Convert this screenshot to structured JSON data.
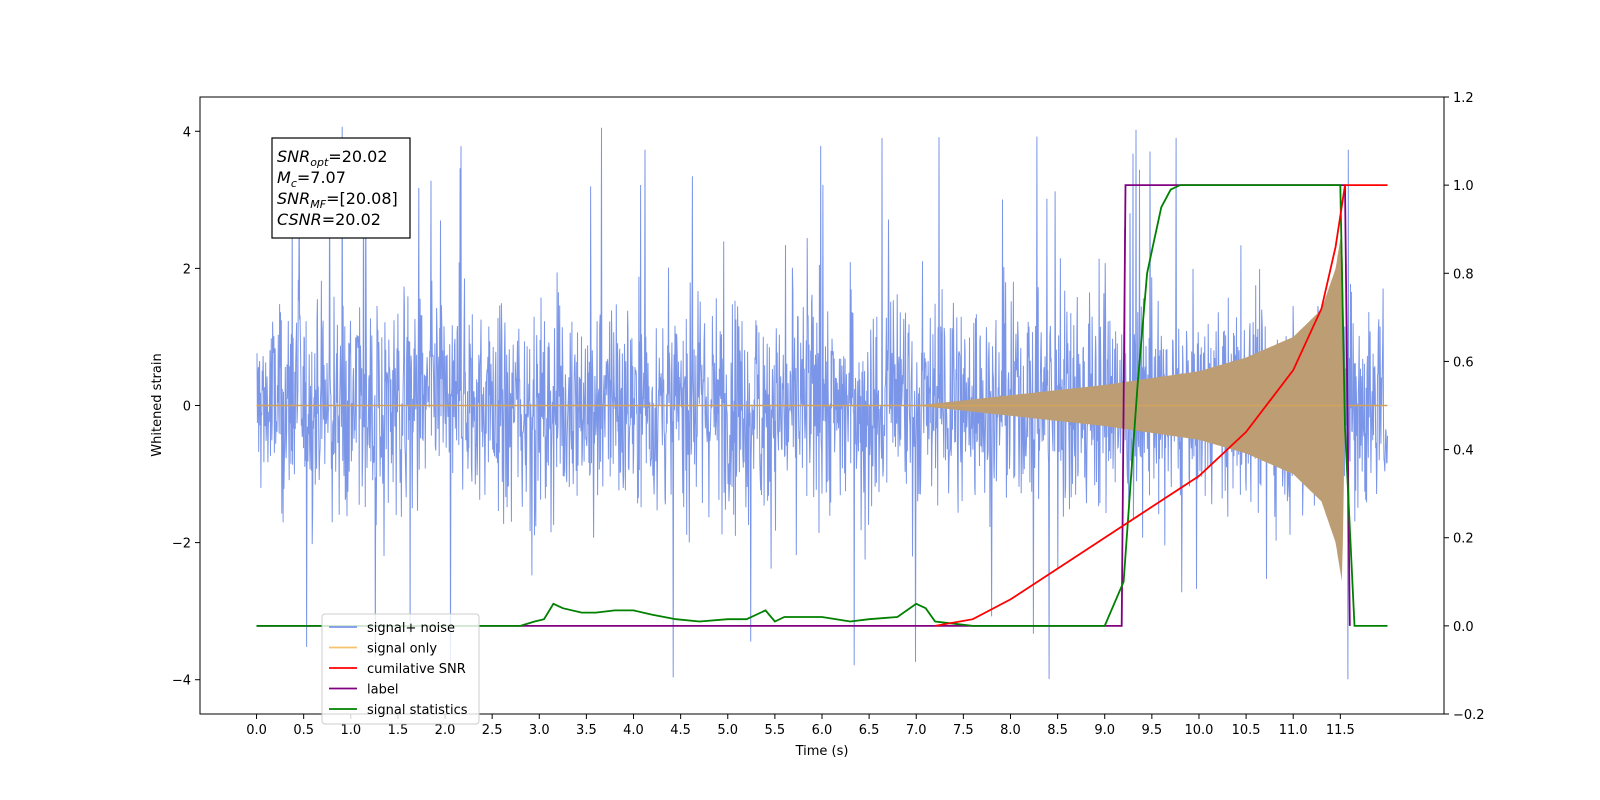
{
  "chart_data": {
    "type": "line",
    "xlabel": "Time (s)",
    "ylabel": "Whitened strain",
    "xlim": [
      -0.6,
      12.6
    ],
    "ylim": [
      -4.5,
      4.5
    ],
    "y2lim": [
      -0.2,
      1.2
    ],
    "x_ticks": [
      "0.0",
      "0.5",
      "1.0",
      "1.5",
      "2.0",
      "2.5",
      "3.0",
      "3.5",
      "4.0",
      "4.5",
      "5.0",
      "5.5",
      "6.0",
      "6.5",
      "7.0",
      "7.5",
      "8.0",
      "8.5",
      "9.0",
      "9.5",
      "10.0",
      "10.5",
      "11.0",
      "11.5"
    ],
    "y_ticks": [
      "4",
      "2",
      "0",
      "−2",
      "−4"
    ],
    "y2_ticks": [
      "1.2",
      "1.0",
      "0.8",
      "0.6",
      "0.4",
      "0.2",
      "0.0",
      "−0.2"
    ],
    "legend_position": "lower-left",
    "annotation": {
      "snr_opt": {
        "sym": "SNR",
        "sub": "opt",
        "value": "=20.02"
      },
      "mc": {
        "sym": "M",
        "sub": "c",
        "value": "=7.07"
      },
      "snr_mf": {
        "sym": "SNR",
        "sub": "MF",
        "value": "=[20.08]"
      },
      "csnr": {
        "sym": "CSNR",
        "sub": "",
        "value": "=20.02"
      }
    },
    "series": [
      {
        "name": "signal+ noise",
        "color": "#7b96e8",
        "axis": "left",
        "description_values": "noise band roughly ±2 with spikes to ±4, from t=0.0 to t=12.0"
      },
      {
        "name": "signal only",
        "color": "#f5c36b",
        "axis": "left",
        "envelope": [
          [
            7.0,
            0.0
          ],
          [
            8.0,
            0.15
          ],
          [
            9.0,
            0.3
          ],
          [
            10.0,
            0.5
          ],
          [
            10.5,
            0.7
          ],
          [
            11.0,
            1.0
          ],
          [
            11.3,
            1.4
          ],
          [
            11.45,
            2.0
          ],
          [
            11.52,
            2.6
          ],
          [
            11.55,
            0.0
          ]
        ]
      },
      {
        "name": "cumilative SNR",
        "color": "#ff0000",
        "axis": "right",
        "x": [
          7.2,
          7.6,
          8.0,
          8.5,
          9.0,
          9.5,
          10.0,
          10.5,
          11.0,
          11.3,
          11.45,
          11.55,
          11.6,
          12.0
        ],
        "y": [
          0.0,
          0.015,
          0.06,
          0.13,
          0.2,
          0.27,
          0.34,
          0.44,
          0.58,
          0.72,
          0.86,
          1.0,
          1.0,
          1.0
        ]
      },
      {
        "name": "label",
        "color": "#800080",
        "axis": "right",
        "x": [
          0.0,
          9.18,
          9.22,
          9.85,
          11.55,
          11.6
        ],
        "y": [
          0.0,
          0.0,
          1.0,
          1.0,
          1.0,
          0.0
        ]
      },
      {
        "name": "signal statistics",
        "color": "#008000",
        "axis": "right",
        "x": [
          0.0,
          2.8,
          2.95,
          3.05,
          3.15,
          3.25,
          3.45,
          3.6,
          3.8,
          4.0,
          4.2,
          4.45,
          4.7,
          5.0,
          5.2,
          5.4,
          5.5,
          5.6,
          6.0,
          6.3,
          6.5,
          6.8,
          7.0,
          7.1,
          7.2,
          7.4,
          7.6,
          8.0,
          9.0,
          9.2,
          9.35,
          9.45,
          9.5,
          9.6,
          9.7,
          9.8,
          9.9,
          10.0,
          11.5,
          11.55,
          11.65,
          12.0
        ],
        "y": [
          0.0,
          0.0,
          0.01,
          0.015,
          0.05,
          0.04,
          0.03,
          0.03,
          0.035,
          0.035,
          0.025,
          0.015,
          0.01,
          0.015,
          0.015,
          0.035,
          0.01,
          0.02,
          0.02,
          0.01,
          0.015,
          0.02,
          0.05,
          0.04,
          0.01,
          0.005,
          0.0,
          0.0,
          0.0,
          0.1,
          0.55,
          0.8,
          0.85,
          0.95,
          0.99,
          1.0,
          1.0,
          1.0,
          1.0,
          0.45,
          0.0,
          0.0
        ]
      }
    ]
  }
}
